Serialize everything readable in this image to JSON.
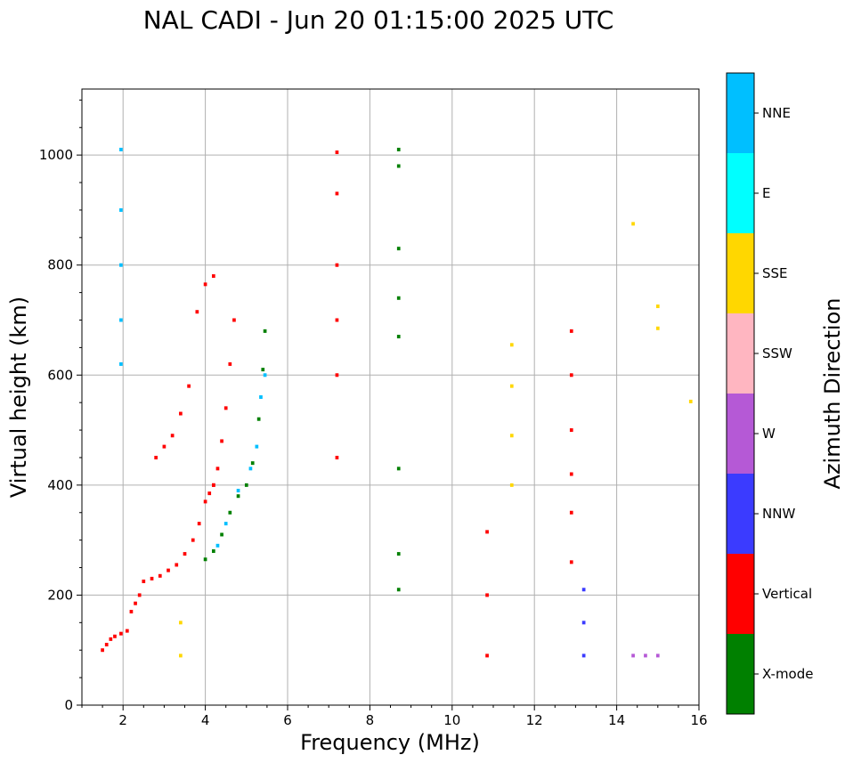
{
  "chart_data": {
    "type": "scatter",
    "title": "NAL CADI - Jun 20 01:15:00 2025 UTC",
    "xlabel": "Frequency (MHz)",
    "ylabel": "Virtual height (km)",
    "xlim": [
      1,
      16
    ],
    "ylim": [
      0,
      1120
    ],
    "xticks": [
      2,
      4,
      6,
      8,
      10,
      12,
      14,
      16
    ],
    "yticks": [
      0,
      200,
      400,
      600,
      800,
      1000
    ],
    "grid": true,
    "colorbar": {
      "label": "Azimuth Direction",
      "categories": [
        {
          "name": "X-mode",
          "color": "#008000"
        },
        {
          "name": "Vertical",
          "color": "#ff0000"
        },
        {
          "name": "NNW",
          "color": "#3b3bff"
        },
        {
          "name": "W",
          "color": "#b559d6"
        },
        {
          "name": "SSW",
          "color": "#ffb6c1"
        },
        {
          "name": "SSE",
          "color": "#ffd700"
        },
        {
          "name": "E",
          "color": "#00ffff"
        },
        {
          "name": "NNE",
          "color": "#00bfff"
        }
      ]
    },
    "tracks": [
      {
        "name": "low-trace",
        "category": "Vertical",
        "points": [
          [
            1.5,
            100
          ],
          [
            1.6,
            110
          ],
          [
            1.7,
            120
          ],
          [
            1.8,
            125
          ],
          [
            1.95,
            130
          ],
          [
            2.1,
            135
          ],
          [
            2.2,
            170
          ],
          [
            2.3,
            185
          ],
          [
            2.4,
            200
          ],
          [
            2.5,
            225
          ],
          [
            2.7,
            230
          ],
          [
            2.9,
            235
          ],
          [
            3.1,
            245
          ],
          [
            3.3,
            255
          ],
          [
            3.5,
            275
          ],
          [
            3.7,
            300
          ],
          [
            3.85,
            330
          ],
          [
            4.0,
            370
          ],
          [
            4.1,
            385
          ],
          [
            4.2,
            400
          ]
        ]
      },
      {
        "name": "upper-trace",
        "category": "Vertical",
        "points": [
          [
            2.8,
            450
          ],
          [
            3.0,
            470
          ],
          [
            3.2,
            490
          ],
          [
            3.4,
            530
          ],
          [
            3.6,
            580
          ],
          [
            3.8,
            715
          ],
          [
            4.0,
            765
          ],
          [
            4.2,
            780
          ]
        ]
      },
      {
        "name": "o-trace",
        "category": "Vertical",
        "points": [
          [
            4.2,
            400
          ],
          [
            4.3,
            430
          ],
          [
            4.4,
            480
          ],
          [
            4.5,
            540
          ],
          [
            4.6,
            620
          ],
          [
            4.7,
            700
          ]
        ]
      },
      {
        "name": "x-trace",
        "category": "X-mode",
        "points": [
          [
            4.0,
            265
          ],
          [
            4.2,
            280
          ],
          [
            4.4,
            310
          ],
          [
            4.6,
            350
          ],
          [
            4.8,
            380
          ],
          [
            5.0,
            400
          ],
          [
            5.15,
            440
          ],
          [
            5.3,
            520
          ],
          [
            5.4,
            610
          ],
          [
            5.45,
            680
          ]
        ]
      },
      {
        "name": "nne-trace",
        "category": "NNE",
        "points": [
          [
            4.3,
            290
          ],
          [
            4.5,
            330
          ],
          [
            4.8,
            390
          ],
          [
            5.1,
            430
          ],
          [
            5.25,
            470
          ],
          [
            5.35,
            560
          ],
          [
            5.45,
            600
          ]
        ]
      },
      {
        "name": "column-2.0",
        "category": "NNE",
        "points": [
          [
            1.95,
            620
          ],
          [
            1.95,
            700
          ],
          [
            1.95,
            800
          ],
          [
            1.95,
            900
          ],
          [
            1.95,
            1010
          ]
        ]
      },
      {
        "name": "column-3.4",
        "category": "SSE",
        "points": [
          [
            3.4,
            90
          ],
          [
            3.4,
            150
          ]
        ]
      },
      {
        "name": "column-7.2",
        "category": "Vertical",
        "points": [
          [
            7.2,
            450
          ],
          [
            7.2,
            600
          ],
          [
            7.2,
            700
          ],
          [
            7.2,
            800
          ],
          [
            7.2,
            930
          ],
          [
            7.2,
            1005
          ]
        ]
      },
      {
        "name": "column-8.7",
        "category": "X-mode",
        "points": [
          [
            8.7,
            210
          ],
          [
            8.7,
            275
          ],
          [
            8.7,
            430
          ],
          [
            8.7,
            670
          ],
          [
            8.7,
            740
          ],
          [
            8.7,
            830
          ],
          [
            8.7,
            980
          ],
          [
            8.7,
            1010
          ]
        ]
      },
      {
        "name": "column-10.85",
        "category": "Vertical",
        "points": [
          [
            10.85,
            90
          ],
          [
            10.85,
            200
          ],
          [
            10.85,
            315
          ]
        ]
      },
      {
        "name": "column-11.45",
        "category": "SSE",
        "points": [
          [
            11.45,
            400
          ],
          [
            11.45,
            490
          ],
          [
            11.45,
            580
          ],
          [
            11.45,
            655
          ]
        ]
      },
      {
        "name": "column-12.9",
        "category": "Vertical",
        "points": [
          [
            12.9,
            260
          ],
          [
            12.9,
            350
          ],
          [
            12.9,
            420
          ],
          [
            12.9,
            500
          ],
          [
            12.9,
            600
          ],
          [
            12.9,
            680
          ]
        ]
      },
      {
        "name": "column-13.2",
        "category": "NNW",
        "points": [
          [
            13.2,
            90
          ],
          [
            13.2,
            150
          ],
          [
            13.2,
            210
          ]
        ]
      },
      {
        "name": "top-right",
        "category": "SSE",
        "points": [
          [
            14.4,
            875
          ],
          [
            15.0,
            725
          ],
          [
            15.0,
            685
          ],
          [
            15.8,
            552
          ]
        ]
      },
      {
        "name": "low-right",
        "category": "W",
        "points": [
          [
            14.4,
            90
          ],
          [
            14.7,
            90
          ],
          [
            15.0,
            90
          ]
        ]
      }
    ]
  }
}
